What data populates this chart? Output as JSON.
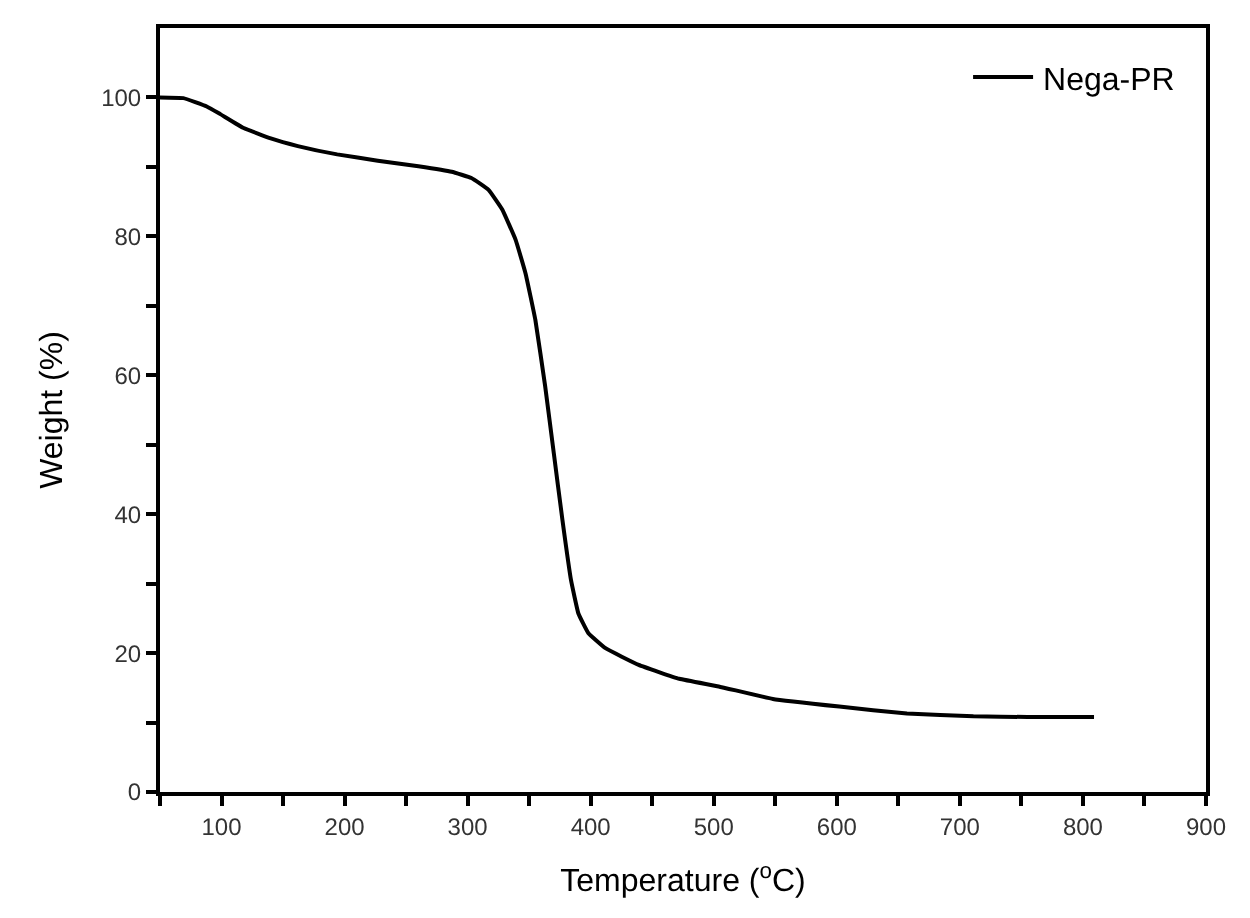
{
  "chart_data": {
    "type": "line",
    "xlabel": "Temperature ($^{o}$C)",
    "ylabel": "Weight (%)",
    "xlim": [
      50,
      900
    ],
    "xticks": [
      {
        "value": 50,
        "label": null
      },
      100,
      {
        "value": 150,
        "label": null
      },
      200,
      {
        "value": 250,
        "label": null
      },
      300,
      {
        "value": 350,
        "label": null
      },
      400,
      {
        "value": 450,
        "label": null
      },
      500,
      {
        "value": 550,
        "label": null
      },
      600,
      {
        "value": 650,
        "label": null
      },
      700,
      {
        "value": 750,
        "label": null
      },
      800,
      {
        "value": 850,
        "label": null
      },
      900
    ],
    "ylim": [
      0,
      110
    ],
    "yticks": [
      0,
      {
        "value": 10,
        "label": null
      },
      20,
      {
        "value": 30,
        "label": null
      },
      40,
      {
        "value": 50,
        "label": null
      },
      60,
      {
        "value": 70,
        "label": null
      },
      80,
      {
        "value": 90,
        "label": null
      },
      100
    ],
    "legend": "top right",
    "marker": "none",
    "line_style": "solid",
    "series": [
      {
        "name": "Nega-PR",
        "color": "#000000",
        "x": [
          50,
          69,
          88,
          99,
          118,
          140,
          162,
          194,
          227,
          260,
          287,
          303,
          317,
          328,
          339,
          347,
          355,
          363,
          370,
          377,
          384,
          390,
          398,
          412,
          439,
          472,
          504,
          548,
          602,
          657,
          711,
          755,
          809
        ],
        "values": [
          100,
          99.9,
          98.7,
          97.6,
          95.6,
          94.1,
          93,
          91.8,
          90.9,
          90.1,
          89.3,
          88.4,
          86.7,
          83.9,
          79.5,
          74.7,
          68,
          58.4,
          48.8,
          39.2,
          30.5,
          25.7,
          22.9,
          20.7,
          18.3,
          16.3,
          15.2,
          13.4,
          12.3,
          11.3,
          10.9,
          10.8,
          10.8
        ]
      }
    ]
  }
}
